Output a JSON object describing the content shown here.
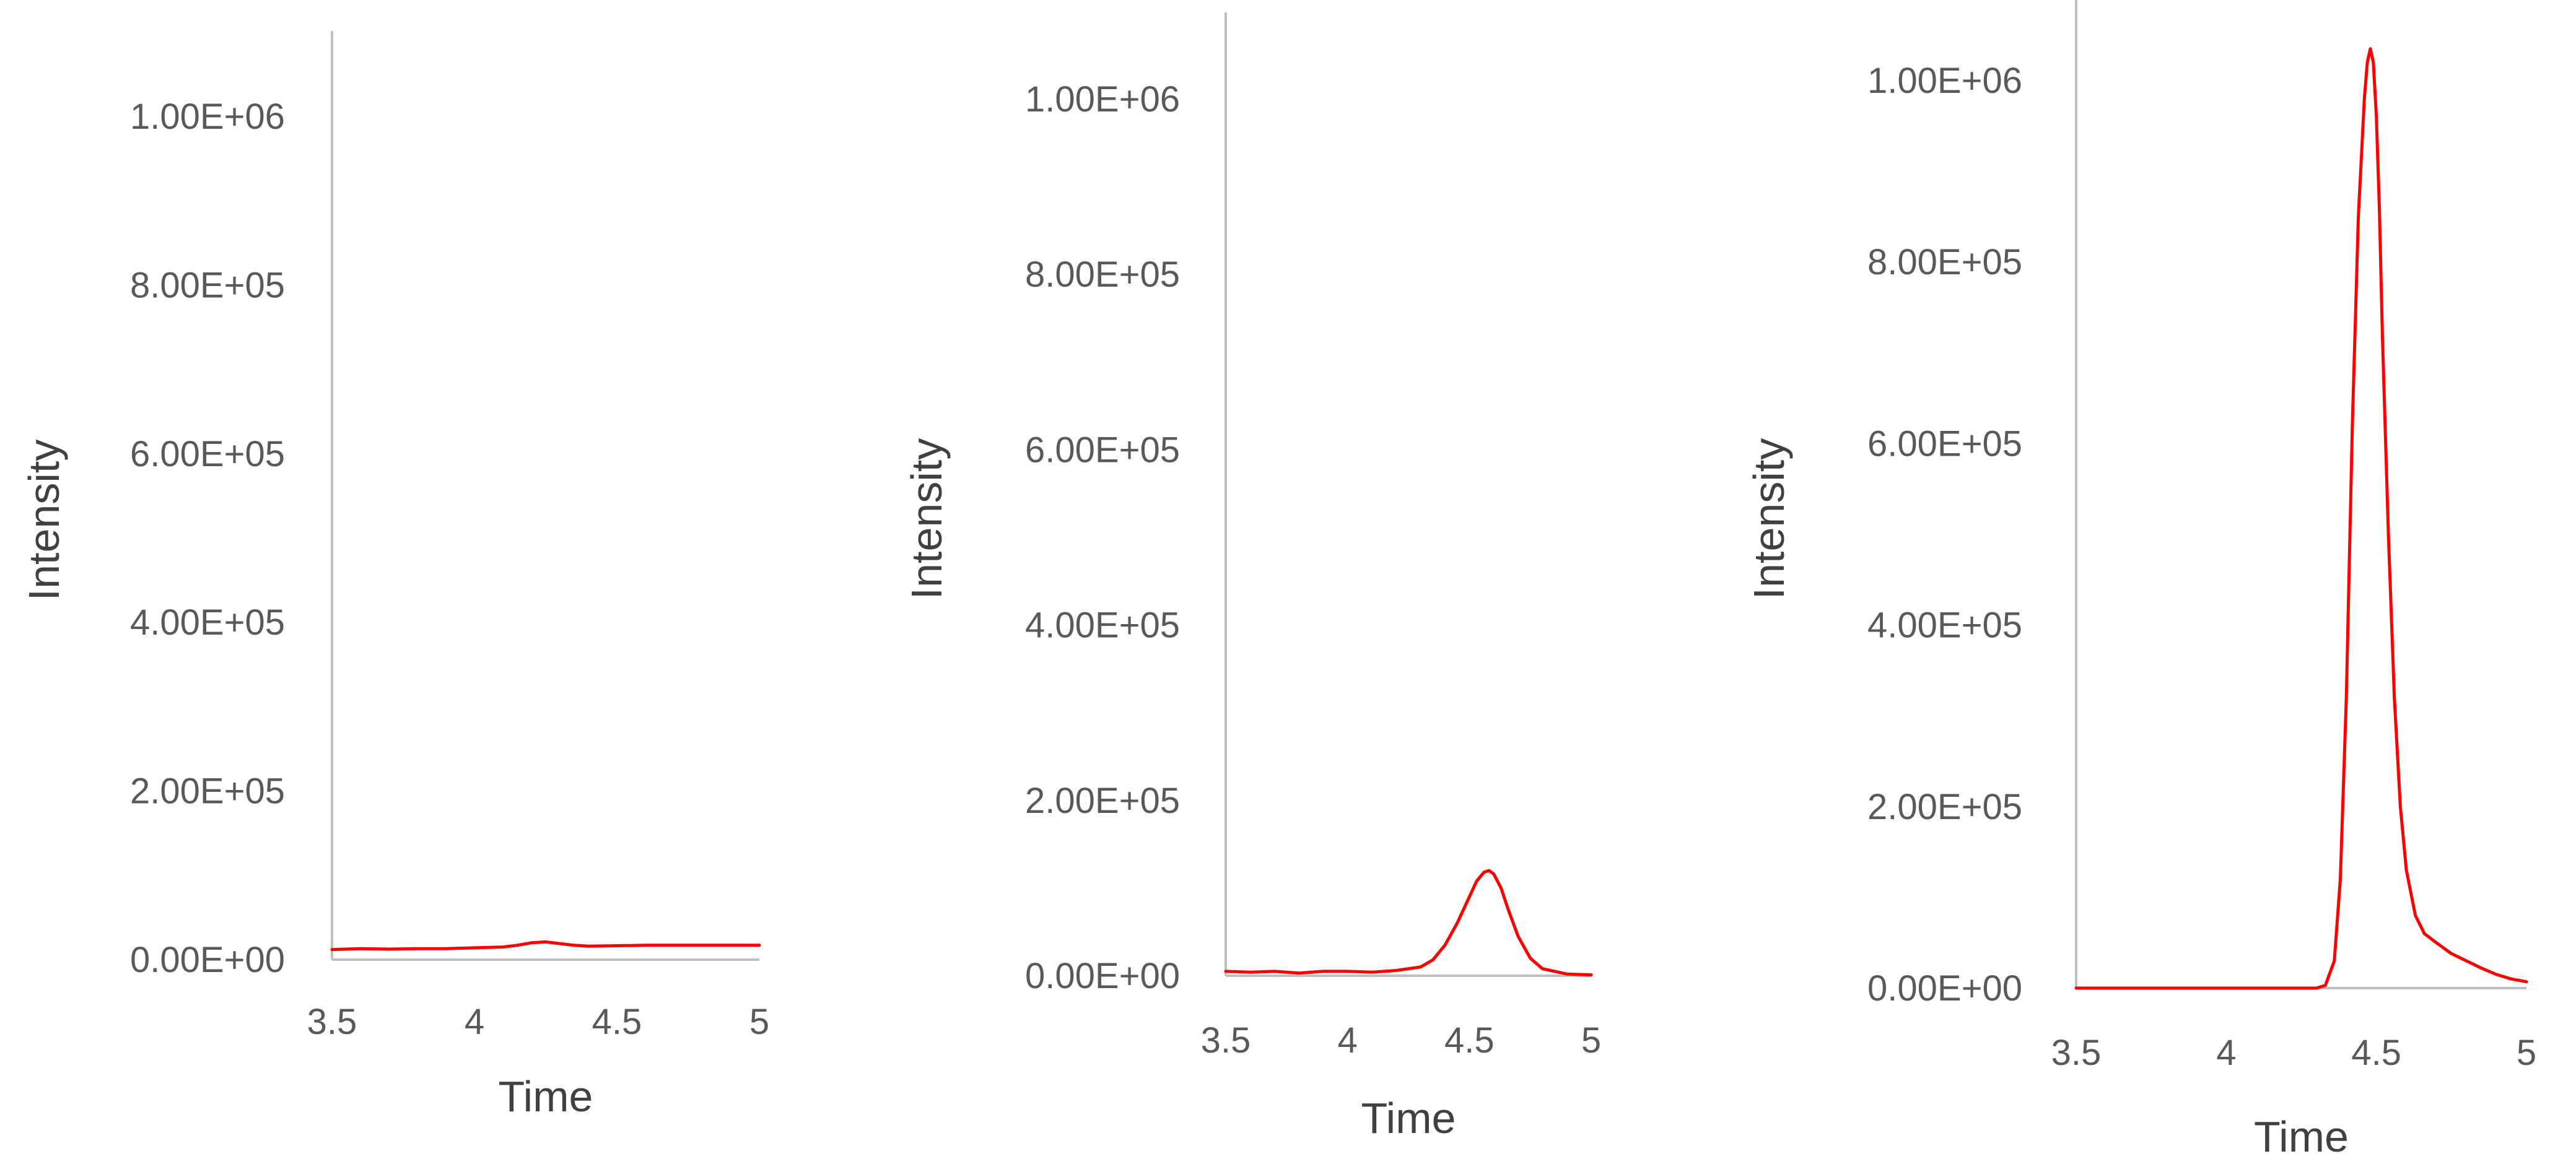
{
  "chart_data": [
    {
      "type": "line",
      "xlabel": "Time",
      "ylabel": "Intensity",
      "xlim": [
        3.5,
        5
      ],
      "ylim": [
        0,
        1100000
      ],
      "xticks": [
        3.5,
        4,
        4.5,
        5
      ],
      "xtick_labels": [
        "3.5",
        "4",
        "4.5",
        "5"
      ],
      "yticks": [
        0,
        200000,
        400000,
        600000,
        800000,
        1000000
      ],
      "ytick_labels": [
        "0.00E+00",
        "2.00E+05",
        "4.00E+05",
        "6.00E+05",
        "8.00E+05",
        "1.00E+06"
      ],
      "grid": false,
      "legend": "none",
      "color": "#ff0000",
      "series": [
        {
          "x": [
            3.5,
            3.6,
            3.7,
            3.8,
            3.9,
            4.0,
            4.1,
            4.15,
            4.2,
            4.25,
            4.3,
            4.35,
            4.4,
            4.5,
            4.6,
            4.7,
            4.8,
            4.9,
            5.0
          ],
          "values": [
            12000,
            13000,
            12500,
            13000,
            13000,
            14000,
            15000,
            17000,
            20000,
            21000,
            19000,
            17000,
            16000,
            16500,
            17000,
            17000,
            17000,
            17000,
            17000
          ]
        }
      ]
    },
    {
      "type": "line",
      "xlabel": "Time",
      "ylabel": "Intensity",
      "xlim": [
        3.5,
        5
      ],
      "ylim": [
        0,
        1100000
      ],
      "xticks": [
        3.5,
        4,
        4.5,
        5
      ],
      "xtick_labels": [
        "3.5",
        "4",
        "4.5",
        "5"
      ],
      "yticks": [
        0,
        200000,
        400000,
        600000,
        800000,
        1000000
      ],
      "ytick_labels": [
        "0.00E+00",
        "2.00E+05",
        "4.00E+05",
        "6.00E+05",
        "8.00E+05",
        "1.00E+06"
      ],
      "grid": false,
      "legend": "none",
      "color": "#ff0000",
      "series": [
        {
          "x": [
            3.5,
            3.6,
            3.7,
            3.8,
            3.9,
            4.0,
            4.1,
            4.2,
            4.3,
            4.35,
            4.4,
            4.45,
            4.5,
            4.53,
            4.56,
            4.58,
            4.6,
            4.63,
            4.66,
            4.7,
            4.75,
            4.8,
            4.9,
            5.0
          ],
          "values": [
            5000,
            4000,
            5000,
            3000,
            5000,
            5000,
            4000,
            6000,
            10000,
            18000,
            35000,
            60000,
            90000,
            108000,
            118000,
            120000,
            116000,
            100000,
            75000,
            45000,
            20000,
            8000,
            2000,
            1000
          ]
        }
      ]
    },
    {
      "type": "line",
      "xlabel": "Time",
      "ylabel": "Intensity",
      "xlim": [
        3.5,
        5
      ],
      "ylim": [
        0,
        1100000
      ],
      "xticks": [
        3.5,
        4,
        4.5,
        5
      ],
      "xtick_labels": [
        "3.5",
        "4",
        "4.5",
        "5"
      ],
      "yticks": [
        0,
        200000,
        400000,
        600000,
        800000,
        1000000
      ],
      "ytick_labels": [
        "0.00E+00",
        "2.00E+05",
        "4.00E+05",
        "6.00E+05",
        "8.00E+05",
        "1.00E+06"
      ],
      "grid": false,
      "legend": "none",
      "color": "#ff0000",
      "series": [
        {
          "x": [
            3.5,
            3.7,
            3.9,
            4.1,
            4.3,
            4.33,
            4.36,
            4.38,
            4.4,
            4.42,
            4.44,
            4.46,
            4.47,
            4.48,
            4.49,
            4.5,
            4.51,
            4.52,
            4.54,
            4.56,
            4.58,
            4.6,
            4.63,
            4.66,
            4.7,
            4.75,
            4.8,
            4.85,
            4.9,
            4.95,
            5.0
          ],
          "values": [
            0,
            0,
            0,
            0,
            0,
            3000,
            30000,
            120000,
            320000,
            620000,
            850000,
            980000,
            1020000,
            1035000,
            1020000,
            960000,
            860000,
            720000,
            500000,
            320000,
            200000,
            130000,
            80000,
            60000,
            50000,
            38000,
            30000,
            22000,
            15000,
            10000,
            7000
          ]
        }
      ]
    }
  ]
}
